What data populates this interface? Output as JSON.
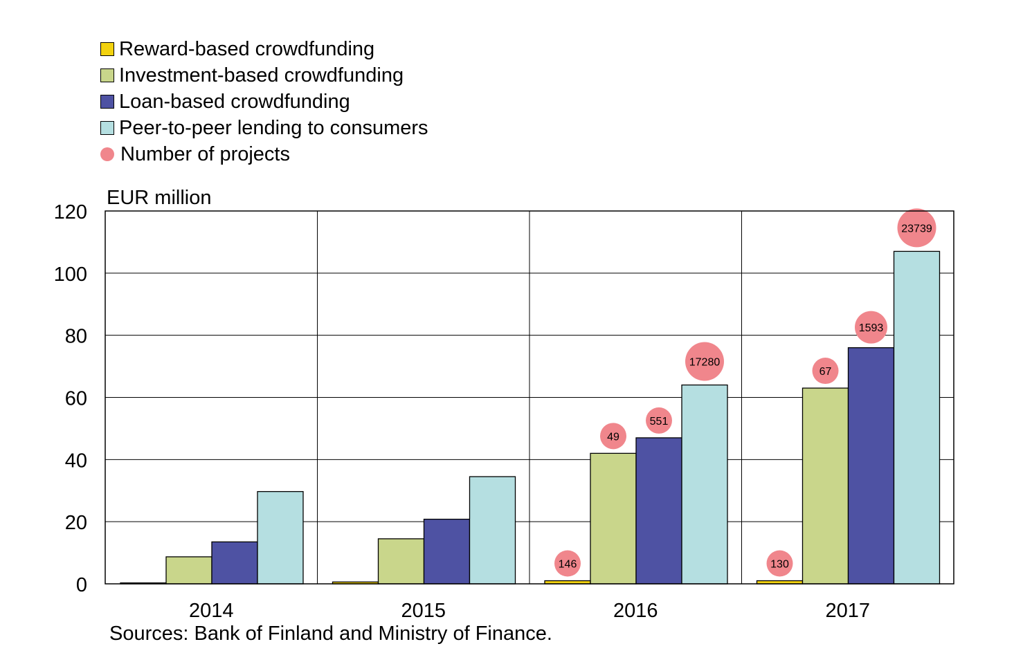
{
  "legend": [
    {
      "label": "Reward-based crowdfunding",
      "color": "#f2d20f",
      "kind": "bar"
    },
    {
      "label": "Investment-based crowdfunding",
      "color": "#c9d68b",
      "kind": "bar"
    },
    {
      "label": "Loan-based crowdfunding",
      "color": "#4e52a3",
      "kind": "bar"
    },
    {
      "label": "Peer-to-peer lending to consumers",
      "color": "#b5dfe1",
      "kind": "bar"
    },
    {
      "label": "Number of projects",
      "color": "#f0868c",
      "kind": "dot"
    }
  ],
  "unit_label": "EUR million",
  "source_note": "Sources: Bank of Finland and Ministry of Finance.",
  "chart_data": {
    "type": "bar",
    "categories": [
      "2014",
      "2015",
      "2016",
      "2017"
    ],
    "series": [
      {
        "name": "Reward-based crowdfunding",
        "color": "#f2d20f",
        "values": [
          0.3,
          0.6,
          1.0,
          1.0
        ],
        "projects": [
          null,
          null,
          "146",
          "130"
        ]
      },
      {
        "name": "Investment-based crowdfunding",
        "color": "#c9d68b",
        "values": [
          8.7,
          14.5,
          42.0,
          63.0
        ],
        "projects": [
          null,
          null,
          "49",
          "67"
        ]
      },
      {
        "name": "Loan-based crowdfunding",
        "color": "#4e52a3",
        "values": [
          13.5,
          20.8,
          47.0,
          76.0
        ],
        "projects": [
          null,
          null,
          "551",
          "1593"
        ]
      },
      {
        "name": "Peer-to-peer lending to consumers",
        "color": "#b5dfe1",
        "values": [
          29.7,
          34.5,
          64.0,
          107.0
        ],
        "projects": [
          null,
          null,
          "17280",
          "23739"
        ]
      }
    ],
    "ylim": [
      0,
      120
    ],
    "yticks": [
      0,
      20,
      40,
      60,
      80,
      100,
      120
    ],
    "ylabel": "EUR million",
    "grid": true,
    "legend_position": "top-left",
    "marker_color": "#f0868c"
  }
}
